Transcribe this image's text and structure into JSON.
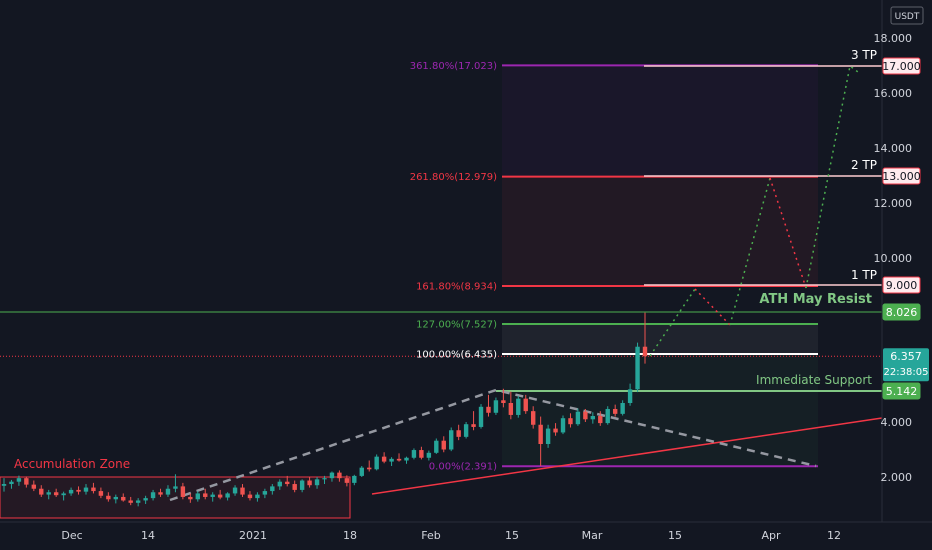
{
  "chart_data": {
    "type": "candlestick",
    "currency_label": "USDT",
    "y_ticks": [
      "18.000",
      "16.000",
      "14.000",
      "12.000",
      "10.000",
      "4.000",
      "2.000"
    ],
    "x_ticks": [
      "Dec",
      "14",
      "2021",
      "18",
      "Feb",
      "15",
      "Mar",
      "15",
      "Apr",
      "12"
    ],
    "price_tags": [
      {
        "label": "17.000",
        "value": 17.0,
        "kind": "tp"
      },
      {
        "label": "13.000",
        "value": 13.0,
        "kind": "tp"
      },
      {
        "label": "9.000",
        "value": 9.0,
        "kind": "tp"
      },
      {
        "label": "8.026",
        "value": 8.026,
        "kind": "green"
      },
      {
        "label": "5.142",
        "value": 5.142,
        "kind": "green"
      }
    ],
    "current_price": {
      "label": "6.357",
      "countdown": "22:38:05",
      "value": 6.357
    },
    "fib_levels": [
      {
        "label": "361.80%(17.023)",
        "value": 17.023,
        "color": "#9c27b0"
      },
      {
        "label": "261.80%(12.979)",
        "value": 12.979,
        "color": "#f23645"
      },
      {
        "label": "161.80%(8.934)",
        "value": 8.934,
        "color": "#f23645"
      },
      {
        "label": "127.00%(7.527)",
        "value": 7.527,
        "color": "#4caf50"
      },
      {
        "label": "100.00%(6.435)",
        "value": 6.435,
        "color": "#ffffff"
      },
      {
        "label": "0.00%(2.391)",
        "value": 2.391,
        "color": "#9c27b0"
      }
    ],
    "annotations": {
      "accumulation_zone": "Accumulation Zone",
      "ath": "ATH May Resist",
      "support": "Immediate Support",
      "tp1": "1 TP",
      "tp2": "2 TP",
      "tp3": "3 TP"
    },
    "candles": [
      {
        "o": 1.85,
        "h": 1.98,
        "l": 1.75,
        "c": 1.88
      },
      {
        "o": 1.88,
        "h": 1.95,
        "l": 1.8,
        "c": 1.92
      },
      {
        "o": 1.92,
        "h": 2.05,
        "l": 1.85,
        "c": 1.98
      },
      {
        "o": 1.98,
        "h": 2.02,
        "l": 1.82,
        "c": 1.87
      },
      {
        "o": 1.87,
        "h": 1.94,
        "l": 1.76,
        "c": 1.8
      },
      {
        "o": 1.8,
        "h": 1.86,
        "l": 1.66,
        "c": 1.7
      },
      {
        "o": 1.7,
        "h": 1.78,
        "l": 1.62,
        "c": 1.74
      },
      {
        "o": 1.74,
        "h": 1.8,
        "l": 1.66,
        "c": 1.69
      },
      {
        "o": 1.69,
        "h": 1.75,
        "l": 1.6,
        "c": 1.72
      },
      {
        "o": 1.72,
        "h": 1.82,
        "l": 1.68,
        "c": 1.78
      },
      {
        "o": 1.78,
        "h": 1.84,
        "l": 1.7,
        "c": 1.75
      },
      {
        "o": 1.75,
        "h": 1.88,
        "l": 1.7,
        "c": 1.82
      },
      {
        "o": 1.82,
        "h": 1.9,
        "l": 1.72,
        "c": 1.76
      },
      {
        "o": 1.76,
        "h": 1.82,
        "l": 1.64,
        "c": 1.68
      },
      {
        "o": 1.68,
        "h": 1.74,
        "l": 1.58,
        "c": 1.62
      },
      {
        "o": 1.62,
        "h": 1.7,
        "l": 1.55,
        "c": 1.66
      },
      {
        "o": 1.66,
        "h": 1.72,
        "l": 1.58,
        "c": 1.6
      },
      {
        "o": 1.6,
        "h": 1.66,
        "l": 1.52,
        "c": 1.56
      },
      {
        "o": 1.56,
        "h": 1.64,
        "l": 1.5,
        "c": 1.6
      },
      {
        "o": 1.6,
        "h": 1.68,
        "l": 1.54,
        "c": 1.64
      },
      {
        "o": 1.64,
        "h": 1.78,
        "l": 1.6,
        "c": 1.74
      },
      {
        "o": 1.74,
        "h": 1.8,
        "l": 1.66,
        "c": 1.7
      },
      {
        "o": 1.7,
        "h": 1.86,
        "l": 1.66,
        "c": 1.8
      },
      {
        "o": 1.8,
        "h": 2.1,
        "l": 1.74,
        "c": 1.84
      },
      {
        "o": 1.84,
        "h": 1.9,
        "l": 1.62,
        "c": 1.66
      },
      {
        "o": 1.66,
        "h": 1.72,
        "l": 1.56,
        "c": 1.62
      },
      {
        "o": 1.62,
        "h": 1.76,
        "l": 1.58,
        "c": 1.72
      },
      {
        "o": 1.72,
        "h": 1.8,
        "l": 1.62,
        "c": 1.66
      },
      {
        "o": 1.66,
        "h": 1.74,
        "l": 1.58,
        "c": 1.7
      },
      {
        "o": 1.7,
        "h": 1.78,
        "l": 1.62,
        "c": 1.65
      },
      {
        "o": 1.65,
        "h": 1.74,
        "l": 1.6,
        "c": 1.72
      },
      {
        "o": 1.72,
        "h": 1.86,
        "l": 1.68,
        "c": 1.82
      },
      {
        "o": 1.82,
        "h": 1.88,
        "l": 1.66,
        "c": 1.7
      },
      {
        "o": 1.7,
        "h": 1.76,
        "l": 1.6,
        "c": 1.64
      },
      {
        "o": 1.64,
        "h": 1.74,
        "l": 1.58,
        "c": 1.7
      },
      {
        "o": 1.7,
        "h": 1.8,
        "l": 1.64,
        "c": 1.76
      },
      {
        "o": 1.76,
        "h": 1.88,
        "l": 1.7,
        "c": 1.84
      },
      {
        "o": 1.84,
        "h": 1.96,
        "l": 1.78,
        "c": 1.92
      },
      {
        "o": 1.92,
        "h": 2.04,
        "l": 1.84,
        "c": 1.88
      },
      {
        "o": 1.88,
        "h": 1.94,
        "l": 1.74,
        "c": 1.78
      },
      {
        "o": 1.78,
        "h": 1.96,
        "l": 1.74,
        "c": 1.94
      },
      {
        "o": 1.94,
        "h": 2.0,
        "l": 1.82,
        "c": 1.86
      },
      {
        "o": 1.86,
        "h": 2.0,
        "l": 1.8,
        "c": 1.96
      },
      {
        "o": 1.96,
        "h": 2.04,
        "l": 1.88,
        "c": 1.98
      },
      {
        "o": 1.98,
        "h": 2.2,
        "l": 1.92,
        "c": 2.16
      },
      {
        "o": 2.16,
        "h": 2.24,
        "l": 1.92,
        "c": 1.98
      },
      {
        "o": 1.98,
        "h": 2.06,
        "l": 1.84,
        "c": 1.9
      },
      {
        "o": 1.9,
        "h": 2.08,
        "l": 1.86,
        "c": 2.04
      },
      {
        "o": 2.04,
        "h": 2.4,
        "l": 2.0,
        "c": 2.34
      },
      {
        "o": 2.34,
        "h": 2.6,
        "l": 2.2,
        "c": 2.28
      },
      {
        "o": 2.28,
        "h": 2.82,
        "l": 2.24,
        "c": 2.74
      },
      {
        "o": 2.74,
        "h": 2.9,
        "l": 2.5,
        "c": 2.56
      },
      {
        "o": 2.56,
        "h": 2.72,
        "l": 2.4,
        "c": 2.66
      },
      {
        "o": 2.66,
        "h": 2.86,
        "l": 2.56,
        "c": 2.6
      },
      {
        "o": 2.6,
        "h": 2.74,
        "l": 2.48,
        "c": 2.7
      },
      {
        "o": 2.7,
        "h": 3.04,
        "l": 2.64,
        "c": 2.98
      },
      {
        "o": 2.98,
        "h": 3.1,
        "l": 2.64,
        "c": 2.7
      },
      {
        "o": 2.7,
        "h": 2.96,
        "l": 2.6,
        "c": 2.88
      },
      {
        "o": 2.88,
        "h": 3.4,
        "l": 2.84,
        "c": 3.32
      },
      {
        "o": 3.32,
        "h": 3.48,
        "l": 2.9,
        "c": 3.0
      },
      {
        "o": 3.0,
        "h": 3.8,
        "l": 2.94,
        "c": 3.7
      },
      {
        "o": 3.7,
        "h": 3.9,
        "l": 3.34,
        "c": 3.46
      },
      {
        "o": 3.46,
        "h": 4.0,
        "l": 3.4,
        "c": 3.92
      },
      {
        "o": 3.92,
        "h": 4.4,
        "l": 3.7,
        "c": 3.82
      },
      {
        "o": 3.82,
        "h": 4.66,
        "l": 3.76,
        "c": 4.56
      },
      {
        "o": 4.56,
        "h": 5.0,
        "l": 4.2,
        "c": 4.34
      },
      {
        "o": 4.34,
        "h": 4.9,
        "l": 4.26,
        "c": 4.8
      },
      {
        "o": 4.8,
        "h": 5.22,
        "l": 4.54,
        "c": 4.7
      },
      {
        "o": 4.7,
        "h": 5.12,
        "l": 4.1,
        "c": 4.26
      },
      {
        "o": 4.26,
        "h": 4.96,
        "l": 4.16,
        "c": 4.86
      },
      {
        "o": 4.86,
        "h": 5.0,
        "l": 4.3,
        "c": 4.4
      },
      {
        "o": 4.4,
        "h": 4.58,
        "l": 3.76,
        "c": 3.9
      },
      {
        "o": 3.9,
        "h": 4.2,
        "l": 2.4,
        "c": 3.2
      },
      {
        "o": 3.2,
        "h": 3.9,
        "l": 3.06,
        "c": 3.76
      },
      {
        "o": 3.76,
        "h": 3.96,
        "l": 3.5,
        "c": 3.62
      },
      {
        "o": 3.62,
        "h": 4.24,
        "l": 3.56,
        "c": 4.14
      },
      {
        "o": 4.14,
        "h": 4.32,
        "l": 3.8,
        "c": 3.92
      },
      {
        "o": 3.92,
        "h": 4.5,
        "l": 3.86,
        "c": 4.38
      },
      {
        "o": 4.38,
        "h": 4.48,
        "l": 4.0,
        "c": 4.1
      },
      {
        "o": 4.1,
        "h": 4.36,
        "l": 3.94,
        "c": 4.22
      },
      {
        "o": 4.22,
        "h": 4.4,
        "l": 3.86,
        "c": 3.96
      },
      {
        "o": 3.96,
        "h": 4.58,
        "l": 3.9,
        "c": 4.48
      },
      {
        "o": 4.48,
        "h": 4.64,
        "l": 4.2,
        "c": 4.3
      },
      {
        "o": 4.3,
        "h": 4.8,
        "l": 4.24,
        "c": 4.7
      },
      {
        "o": 4.7,
        "h": 5.4,
        "l": 4.6,
        "c": 5.2
      },
      {
        "o": 5.2,
        "h": 6.85,
        "l": 5.1,
        "c": 6.7
      },
      {
        "o": 6.7,
        "h": 8.0,
        "l": 6.1,
        "c": 6.357
      }
    ]
  }
}
